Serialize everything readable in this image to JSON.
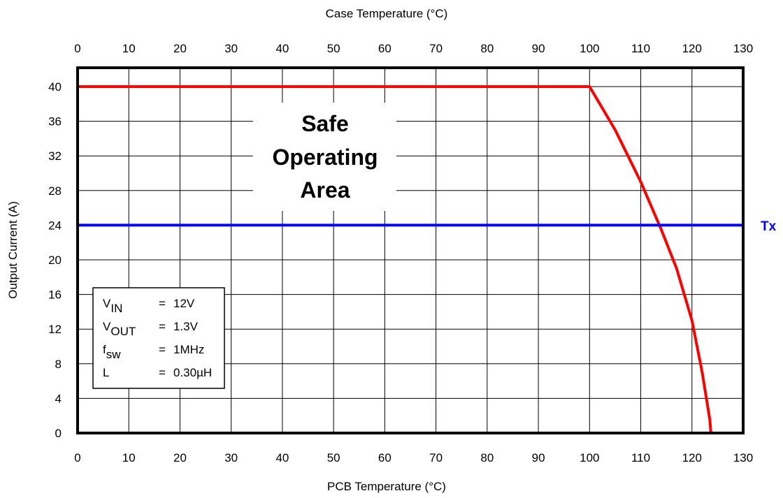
{
  "chart_data": {
    "type": "line",
    "xlabel": "PCB Temperature (°C)",
    "x2label": "Case Temperature (°C)",
    "ylabel": "Output Current (A)",
    "xlim": [
      0,
      130
    ],
    "ylim": [
      0,
      43
    ],
    "x_ticks": [
      0,
      10,
      20,
      30,
      40,
      50,
      60,
      70,
      80,
      90,
      100,
      110,
      120,
      130
    ],
    "y_ticks": [
      0,
      4,
      8,
      12,
      16,
      20,
      24,
      28,
      32,
      36,
      40
    ],
    "grid": true,
    "series": [
      {
        "color": "#ff0000",
        "x": [
          0,
          100,
          105,
          110,
          114,
          117,
          120,
          122,
          123.5,
          123.7
        ],
        "y": [
          40,
          40,
          35,
          29,
          23.5,
          19,
          13,
          7,
          1.5,
          0
        ]
      },
      {
        "name": "Tx",
        "color": "#0000ff",
        "x": [
          0,
          130
        ],
        "y": [
          24,
          24
        ]
      }
    ],
    "area_label": [
      "Safe",
      "Operating",
      "Area"
    ],
    "conditions": [
      {
        "sym": "V",
        "sub": "IN",
        "eq": "=",
        "value": "12V"
      },
      {
        "sym": "V",
        "sub": "OUT",
        "eq": "=",
        "value": "1.3V"
      },
      {
        "sym": "f",
        "sub": "sw",
        "eq": "=",
        "value": "1MHz"
      },
      {
        "sym": "L",
        "sub": "",
        "eq": "=",
        "value": "0.30µH"
      }
    ]
  }
}
